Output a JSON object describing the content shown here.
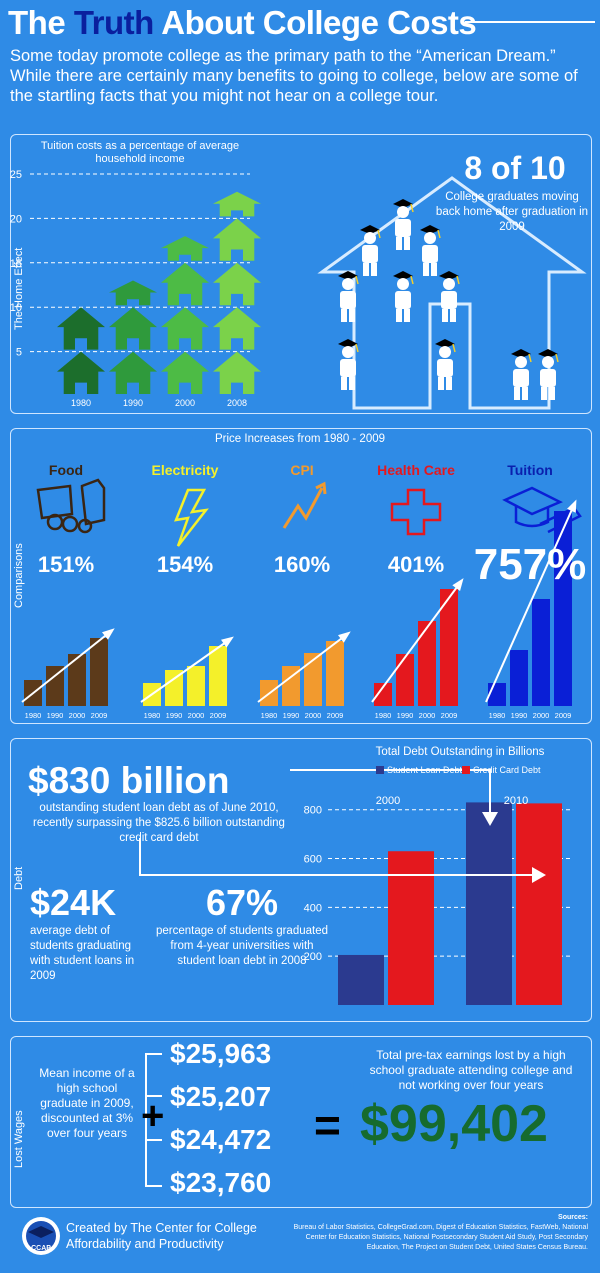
{
  "header": {
    "title_pre": "The ",
    "title_hl": "Truth",
    "title_post": " About College Costs",
    "intro": "Some today promote college as the primary path to the “American Dream.” While there are certainly many benefits to going to college, below are some of the startling facts that you might not hear on a college tour."
  },
  "home_effect": {
    "label": "The Home Effect",
    "stat": "8 of 10",
    "caption": "College graduates moving back home after graduation in 2009"
  },
  "comparisons": {
    "label": "Comparisons",
    "title": "Price Increases from 1980 - 2009",
    "categories": [
      {
        "name": "Food",
        "pct": "151%",
        "color": "#5c3a1a",
        "icon": "food-icon"
      },
      {
        "name": "Electricity",
        "pct": "154%",
        "color": "#f4f02a",
        "icon": "lightning-icon"
      },
      {
        "name": "CPI",
        "pct": "160%",
        "color": "#f29a2e",
        "icon": "trend-arrow-icon"
      },
      {
        "name": "Health Care",
        "pct": "401%",
        "color": "#e4181e",
        "icon": "cross-icon"
      },
      {
        "name": "Tuition",
        "pct": "757%",
        "color": "#0a1fd6",
        "icon": "graduation-cap-icon"
      }
    ]
  },
  "debt": {
    "label": "Debt",
    "big": "$830 billion",
    "big_caption": "outstanding student loan debt as of June 2010, recently  surpassing  the $825.6 billion outstanding credit card debt",
    "avg": "$24K",
    "avg_caption": "average debt of students graduating with student loans in 2009",
    "pct": "67%",
    "pct_caption": "percentage of students graduated from 4-year universities with student loan debt in 2008"
  },
  "lost_wages": {
    "label": "Lost Wages",
    "caption": "Mean income of a high school graduate in 2009, discounted at 3% over four years",
    "amounts": [
      "$25,963",
      "$25,207",
      "$24,472",
      "$23,760"
    ],
    "plus": "+",
    "equals": "=",
    "total_caption": "Total pre-tax earnings lost by a high school graduate  attending college and not working over four years",
    "total": "$99,402"
  },
  "footer": {
    "logo_text": "CCAP",
    "created_by": "Created by  The Center for College Affordability and Productivity",
    "sources_title": "Sources:",
    "sources": "Bureau of Labor Statistics, CollegeGrad.com, Digest of Education Statistics, FastWeb, National Center for Education Statistics, National Postsecondary Student Aid Study, Post Secondary Education, The Project on Student Debt,  United States Census Bureau."
  },
  "chart_data": [
    {
      "type": "bar",
      "title": "Tuition costs as a percentage  of average household income",
      "categories": [
        "1980",
        "1990",
        "2000",
        "2008"
      ],
      "values": [
        10,
        13,
        18,
        23
      ],
      "yticks": [
        5,
        10,
        15,
        20,
        25
      ],
      "ylim": [
        0,
        25
      ],
      "colors": [
        "#1c6e2c",
        "#2f9a3c",
        "#4dbb45",
        "#7bd24a"
      ]
    },
    {
      "type": "bar",
      "title": "Price Increases from 1980 - 2009",
      "categories": [
        "1980",
        "1990",
        "2000",
        "2009"
      ],
      "series": [
        {
          "name": "Food",
          "values": [
            26,
            40,
            52,
            68
          ]
        },
        {
          "name": "Electricity",
          "values": [
            23,
            36,
            40,
            60
          ]
        },
        {
          "name": "CPI",
          "values": [
            26,
            40,
            53,
            65
          ]
        },
        {
          "name": "Health Care",
          "values": [
            23,
            52,
            85,
            117
          ]
        },
        {
          "name": "Tuition",
          "values": [
            23,
            56,
            107,
            195
          ]
        }
      ]
    },
    {
      "type": "bar",
      "title": "Total Debt Outstanding in Billions",
      "categories": [
        "2000",
        "2010"
      ],
      "series": [
        {
          "name": "Student Loan Debt",
          "values": [
            205,
            830
          ],
          "color": "#2b3a8f"
        },
        {
          "name": "Credit Card Debt",
          "values": [
            630,
            826
          ],
          "color": "#e4181e"
        }
      ],
      "yticks": [
        200,
        400,
        600,
        800
      ],
      "ylim": [
        0,
        930
      ]
    }
  ]
}
